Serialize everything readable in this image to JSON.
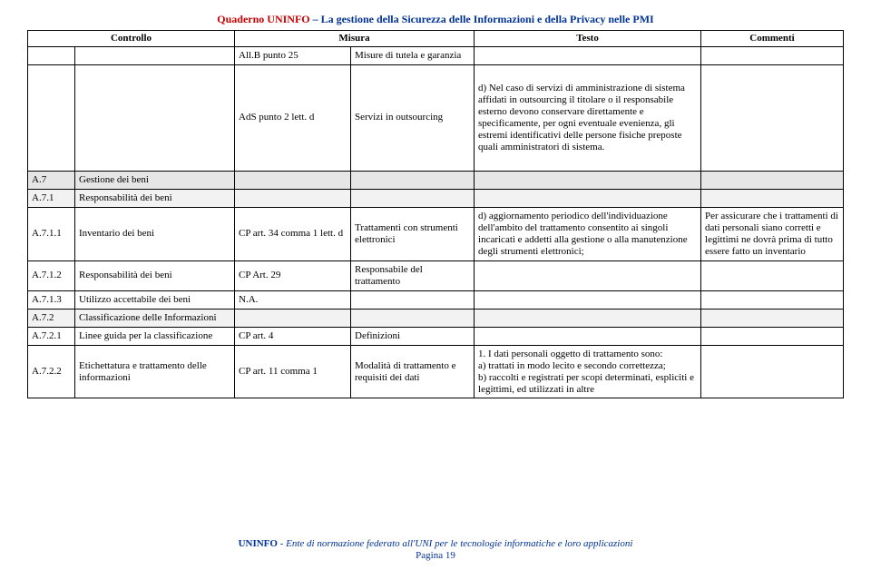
{
  "header": {
    "title_red": "Quaderno UNINFO",
    "title_sep": " – ",
    "title_blue": "La gestione della Sicurezza delle Informazioni e della Privacy nelle PMI"
  },
  "columns": {
    "c1": "",
    "c2": "Controllo",
    "c3": "Misura",
    "c4": "",
    "c5": "Testo",
    "c6": "Commenti"
  },
  "rows": [
    {
      "kind": "data",
      "tall": false,
      "cells": [
        "",
        "",
        "All.B punto 25",
        "Misure di tutela e garanzia",
        "",
        ""
      ]
    },
    {
      "kind": "data",
      "tall": true,
      "cells": [
        "",
        "",
        "AdS punto 2 lett. d",
        "Servizi in outsourcing",
        "d) Nel caso di servizi di amministrazione di sistema affidati in outsourcing il titolare o il responsabile esterno devono conservare direttamente e specificamente, per ogni eventuale evenienza, gli estremi identificativi delle persone fisiche preposte quali amministratori di sistema.",
        ""
      ]
    },
    {
      "kind": "section",
      "cells": [
        "A.7",
        "Gestione dei beni",
        "",
        "",
        "",
        ""
      ]
    },
    {
      "kind": "sub",
      "cells": [
        "A.7.1",
        "Responsabilità dei beni",
        "",
        "",
        "",
        ""
      ]
    },
    {
      "kind": "data",
      "tall": false,
      "cells": [
        "A.7.1.1",
        "Inventario dei beni",
        "CP art. 34 comma 1 lett. d",
        "Trattamenti con strumenti elettronici",
        "d) aggiornamento periodico dell'individuazione dell'ambito del trattamento consentito ai singoli incaricati e addetti alla gestione o alla manutenzione degli strumenti elettronici;",
        "Per assicurare che i trattamenti di dati personali siano corretti e legittimi ne dovrà prima di tutto essere fatto un inventario"
      ]
    },
    {
      "kind": "data",
      "tall": false,
      "cells": [
        "A.7.1.2",
        "Responsabilità dei beni",
        "CP Art. 29",
        "Responsabile del trattamento",
        "",
        ""
      ]
    },
    {
      "kind": "data",
      "tall": false,
      "cells": [
        "A.7.1.3",
        "Utilizzo accettabile dei beni",
        "N.A.",
        "",
        "",
        ""
      ]
    },
    {
      "kind": "sub",
      "cells": [
        "A.7.2",
        "Classificazione delle Informazioni",
        "",
        "",
        "",
        ""
      ]
    },
    {
      "kind": "data",
      "tall": false,
      "cells": [
        "A.7.2.1",
        "Linee guida per la classificazione",
        "CP art. 4",
        "Definizioni",
        "",
        ""
      ]
    },
    {
      "kind": "data",
      "tall": false,
      "cells": [
        "A.7.2.2",
        "Etichettatura e trattamento delle informazioni",
        "CP art. 11 comma 1",
        "Modalità di trattamento e requisiti dei dati",
        "1. I dati personali oggetto di trattamento sono:\na) trattati in modo lecito e secondo correttezza;\nb) raccolti e registrati per scopi determinati, espliciti e legittimi, ed utilizzati in altre",
        ""
      ]
    }
  ],
  "footer": {
    "org_bold": "UNINFO",
    "org_rest": " - Ente di normazione federato all'UNI per le tecnologie informatiche e loro applicazioni",
    "page": "Pagina 19"
  }
}
